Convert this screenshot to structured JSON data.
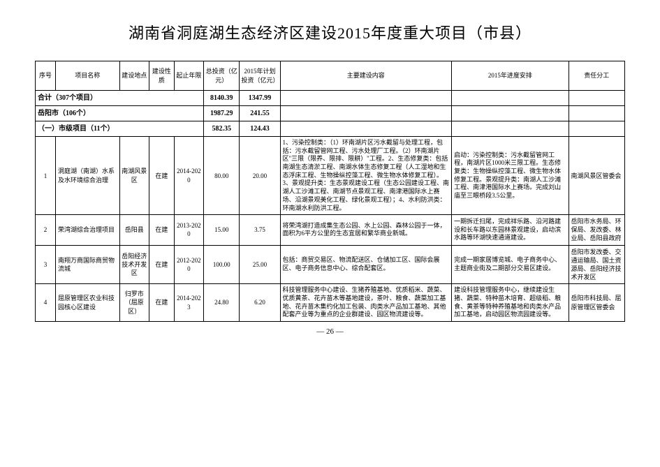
{
  "title": "湖南省洞庭湖生态经济区建设2015年度重大项目（市县）",
  "headers": {
    "seq": "序号",
    "name": "项目名称",
    "location": "建设地点",
    "type": "建设性质",
    "years": "起止年限",
    "total_inv": "总投资（亿元）",
    "plan_inv": "2015年计划投资（亿元）",
    "content": "主要建设内容",
    "progress": "2015年进度安排",
    "responsible": "责任分工"
  },
  "summary_rows": [
    {
      "label": "合计（307个项目）",
      "total": "8140.39",
      "plan": "1347.99"
    },
    {
      "label": "岳阳市（106个）",
      "total": "1987.29",
      "plan": "241.55"
    },
    {
      "label": "（一）市级项目（11个）",
      "total": "582.35",
      "plan": "124.43"
    }
  ],
  "rows": [
    {
      "seq": "1",
      "name": "洞庭湖（南湖）水系及水环境综合治理",
      "location": "南湖风景区",
      "type": "在建",
      "years": "2014-2020",
      "total": "80.00",
      "plan": "20.00",
      "content": "1、污染控制类：（1）环南湖片区污水截留与处理工程，包括：污水截留管网工程、污水处理厂工程。（2）环南湖片区\"三限（限养、限排、限耕）\"工程。2、生态修复类：包括南湖生态清淤工程、南湖水体生态修复工程（人工湿地和生态浮床工程、生物操纵控藻工程、微生物水体修复工程）。3、景观提升类：生态景观建设工程（生态公园建设工程、南湖人工沙滩工程、南湖节点景观工程、南津港国际水上赛场、沿湖景观美化工程、绿化景观工程）；4、水利防洪类：环南湖水利防洪工程。",
      "progress": "启动：污染控制类：污水截留管网工程，南湖片区1000米三限工程。生态修复类：生物操纵控藻工程、微生物水体修复工程。景观提升类：南湖人工沙滩工程、南津港国际水上赛场。完成刘山庙至三眼桥段3.5公里。",
      "responsible": "南湖风景区管委会"
    },
    {
      "seq": "2",
      "name": "荣湾湖综合治理项目",
      "location": "岳阳县",
      "type": "在建",
      "years": "2013-2020",
      "total": "15.00",
      "plan": "3.75",
      "content": "将荣湾湖打造成集生态公园、水上公园、森林公园于一体，面积为6平方公里的生态宜居和繁华商业新城。",
      "progress": "一期拆迁扫尾，完成祥乐路、沿河路建设和长车路以东园林景观建设，启动滨水路等环湖快速通道建设。",
      "responsible": "岳阳市水务局、环保局、发改委、林业局、岳阳县政府"
    },
    {
      "seq": "3",
      "name": "南翔万商国际商贸物流城",
      "location": "岳阳经济技术开发区",
      "type": "在建",
      "years": "2012-2020",
      "total": "100.00",
      "plan": "25.00",
      "content": "包括：商贸交易区、物流配送区、仓储加工区、国际会展区、电子商务信息中心、综合配套区。",
      "progress": "完成一期家居博览城、电子商务中心、主题商业街及二期部分交易区建设。",
      "responsible": "岳阳市发改委、交通运输局、国土资源局、岳阳经济技术开发区"
    },
    {
      "seq": "4",
      "name": "屈原管理区农业科技园核心区建设",
      "location": "归罗市（屈原区）",
      "type": "在建",
      "years": "2014-2023",
      "total": "24.80",
      "plan": "6.20",
      "content": "科技管理服务中心建设、生猪养殖基地、优质稻米、蔬菜、优质黄茶、花卉苗木等基地建设，茶叶、粮食、蔬菜加工基地、花卉苗木集约化加工包装、肉类水产品加工基地、其他配套产业等为重点的企业群建设、园区物流建设等。",
      "progress": "建设科技管理服务中心，继续建设生猪、蔬菜、特种苗木培育、超级稻、粮食、黄茶等特种养殖基地和肉类水产品加工基地，启动园区物流园建设等。",
      "responsible": "岳阳市科技局、屈原管理区管委会"
    }
  ],
  "page_number": "— 26 —"
}
